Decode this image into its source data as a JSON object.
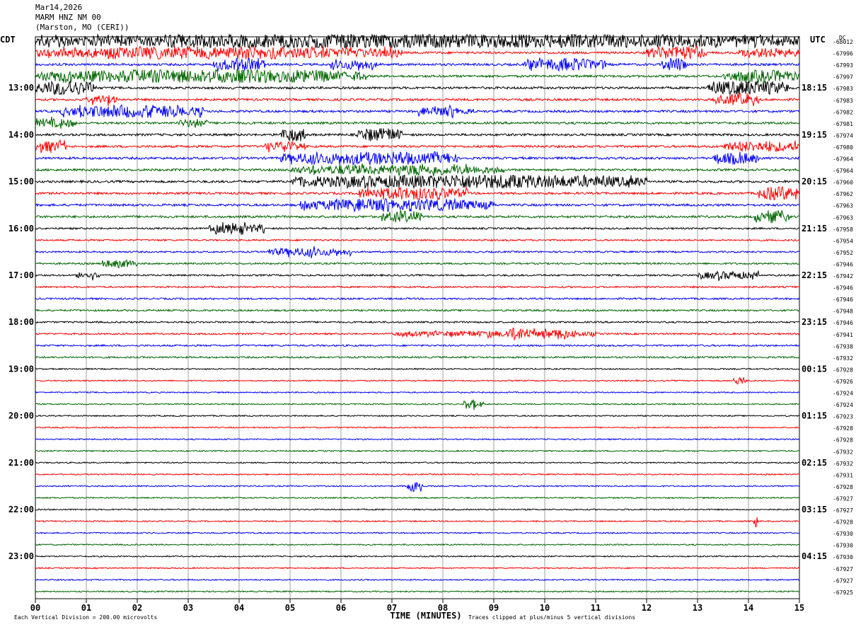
{
  "header": {
    "date": "Mar14,2026",
    "station": "MARM HNZ NM 00",
    "location": "(Marston, MO (CERI))"
  },
  "chart_data": {
    "type": "line",
    "left_tz": "CDT",
    "right_tz": "UTC",
    "dc_label": "DC",
    "xlabel": "TIME (MINUTES)",
    "x_ticks": [
      "00",
      "01",
      "02",
      "03",
      "04",
      "05",
      "06",
      "07",
      "08",
      "09",
      "10",
      "11",
      "12",
      "13",
      "14",
      "15"
    ],
    "xlim": [
      0,
      15
    ],
    "left_hour_labels": [
      "13:00",
      "14:00",
      "15:00",
      "16:00",
      "17:00",
      "18:00",
      "19:00",
      "20:00",
      "21:00",
      "22:00",
      "23:00"
    ],
    "right_hour_labels": [
      "18:15",
      "19:15",
      "20:15",
      "21:15",
      "22:15",
      "23:15",
      "00:15",
      "01:15",
      "02:15",
      "03:15",
      "04:15"
    ],
    "dc_offsets": [
      "-68012",
      "-67996",
      "-67993",
      "-67997",
      "-67983",
      "-67983",
      "-67982",
      "-67981",
      "-67974",
      "-67980",
      "-67964",
      "-67964",
      "-67960",
      "-67962",
      "-67963",
      "-67963",
      "-67958",
      "-67954",
      "-67952",
      "-67946",
      "-67942",
      "-67946",
      "-67946",
      "-67948",
      "-67946",
      "-67941",
      "-67938",
      "-67932",
      "-67928",
      "-67926",
      "-67924",
      "-67924",
      "-67923",
      "-67928",
      "-67928",
      "-67932",
      "-67932",
      "-67931",
      "-67928",
      "-67927",
      "-67927",
      "-67928",
      "-67930",
      "-67930",
      "-67930",
      "-67927",
      "-67927",
      "-67925"
    ],
    "trace_colors": [
      "#000000",
      "#ff0000",
      "#0000ff",
      "#006400"
    ],
    "footer_left": "Each Vertical Division =  200.00 microvolts",
    "footer_right": "Traces clipped at plus/minus 5 vertical divisions",
    "activity": [
      {
        "trace": 0,
        "start": 0.0,
        "end": 15.0,
        "amp": 1.0
      },
      {
        "trace": 1,
        "start": 0.0,
        "end": 7.2,
        "amp": 0.75
      },
      {
        "trace": 1,
        "start": 12.0,
        "end": 13.2,
        "amp": 0.9
      },
      {
        "trace": 1,
        "start": 13.8,
        "end": 15.0,
        "amp": 0.6
      },
      {
        "trace": 2,
        "start": 3.5,
        "end": 4.5,
        "amp": 0.8
      },
      {
        "trace": 2,
        "start": 5.8,
        "end": 6.7,
        "amp": 0.6
      },
      {
        "trace": 2,
        "start": 9.6,
        "end": 11.2,
        "amp": 0.8
      },
      {
        "trace": 2,
        "start": 12.3,
        "end": 12.8,
        "amp": 0.9
      },
      {
        "trace": 3,
        "start": 0.0,
        "end": 6.5,
        "amp": 0.9
      },
      {
        "trace": 3,
        "start": 13.5,
        "end": 15.0,
        "amp": 0.8
      },
      {
        "trace": 4,
        "start": 0.0,
        "end": 1.2,
        "amp": 1.0
      },
      {
        "trace": 4,
        "start": 13.2,
        "end": 14.8,
        "amp": 1.0
      },
      {
        "trace": 5,
        "start": 1.0,
        "end": 1.6,
        "amp": 0.6
      },
      {
        "trace": 5,
        "start": 13.3,
        "end": 14.2,
        "amp": 0.7
      },
      {
        "trace": 6,
        "start": 0.5,
        "end": 3.3,
        "amp": 0.8
      },
      {
        "trace": 6,
        "start": 7.5,
        "end": 8.6,
        "amp": 0.5
      },
      {
        "trace": 7,
        "start": 0.0,
        "end": 0.8,
        "amp": 0.5
      },
      {
        "trace": 7,
        "start": 2.8,
        "end": 3.4,
        "amp": 0.5
      },
      {
        "trace": 8,
        "start": 4.8,
        "end": 5.3,
        "amp": 0.9
      },
      {
        "trace": 8,
        "start": 6.3,
        "end": 7.2,
        "amp": 0.9
      },
      {
        "trace": 9,
        "start": 0.0,
        "end": 0.6,
        "amp": 0.7
      },
      {
        "trace": 9,
        "start": 4.5,
        "end": 5.3,
        "amp": 0.6
      },
      {
        "trace": 9,
        "start": 13.5,
        "end": 15.0,
        "amp": 0.7
      },
      {
        "trace": 10,
        "start": 4.8,
        "end": 8.3,
        "amp": 0.8
      },
      {
        "trace": 10,
        "start": 13.3,
        "end": 14.2,
        "amp": 0.7
      },
      {
        "trace": 11,
        "start": 5.0,
        "end": 9.2,
        "amp": 0.6
      },
      {
        "trace": 12,
        "start": 5.0,
        "end": 12.0,
        "amp": 0.9
      },
      {
        "trace": 13,
        "start": 6.3,
        "end": 8.5,
        "amp": 0.8
      },
      {
        "trace": 13,
        "start": 14.2,
        "end": 15.0,
        "amp": 0.9
      },
      {
        "trace": 14,
        "start": 5.2,
        "end": 9.0,
        "amp": 0.8
      },
      {
        "trace": 15,
        "start": 6.8,
        "end": 7.6,
        "amp": 0.7
      },
      {
        "trace": 15,
        "start": 14.1,
        "end": 14.8,
        "amp": 0.8
      },
      {
        "trace": 16,
        "start": 3.4,
        "end": 4.5,
        "amp": 0.6
      },
      {
        "trace": 18,
        "start": 4.5,
        "end": 6.2,
        "amp": 0.5
      },
      {
        "trace": 19,
        "start": 1.3,
        "end": 2.0,
        "amp": 0.5
      },
      {
        "trace": 20,
        "start": 0.8,
        "end": 1.3,
        "amp": 0.4
      },
      {
        "trace": 20,
        "start": 13.0,
        "end": 14.2,
        "amp": 0.5
      },
      {
        "trace": 25,
        "start": 7.0,
        "end": 11.0,
        "amp": 0.3
      },
      {
        "trace": 25,
        "start": 9.2,
        "end": 9.8,
        "amp": 0.9
      },
      {
        "trace": 25,
        "start": 9.9,
        "end": 10.6,
        "amp": 0.6
      },
      {
        "trace": 29,
        "start": 13.7,
        "end": 13.95,
        "amp": 0.6
      },
      {
        "trace": 31,
        "start": 8.4,
        "end": 8.8,
        "amp": 0.5
      },
      {
        "trace": 38,
        "start": 7.3,
        "end": 7.6,
        "amp": 0.9
      },
      {
        "trace": 41,
        "start": 14.1,
        "end": 14.2,
        "amp": 0.8
      }
    ]
  }
}
